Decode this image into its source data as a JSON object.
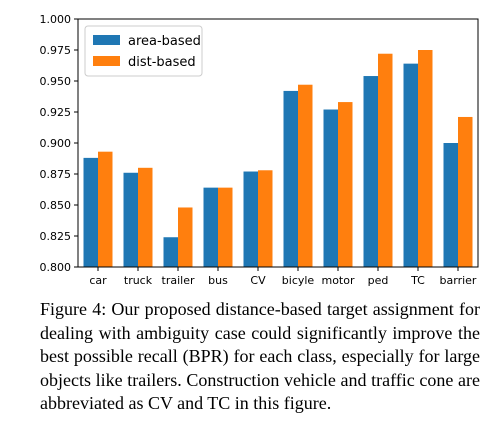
{
  "chart_data": {
    "type": "bar",
    "categories": [
      "car",
      "truck",
      "trailer",
      "bus",
      "CV",
      "bicyle",
      "motor",
      "ped",
      "TC",
      "barrier"
    ],
    "series": [
      {
        "name": "area-based",
        "color": "#1f77b4",
        "values": [
          0.888,
          0.876,
          0.824,
          0.864,
          0.877,
          0.942,
          0.927,
          0.954,
          0.964,
          0.9
        ]
      },
      {
        "name": "dist-based",
        "color": "#ff7f0e",
        "values": [
          0.893,
          0.88,
          0.848,
          0.864,
          0.878,
          0.947,
          0.933,
          0.972,
          0.975,
          0.921
        ]
      }
    ],
    "ylim": [
      0.8,
      1.0
    ],
    "yticks": [
      "0.800",
      "0.825",
      "0.850",
      "0.875",
      "0.900",
      "0.925",
      "0.950",
      "0.975",
      "1.000"
    ],
    "grid": false,
    "legend_position": "top-left"
  },
  "caption": "Figure 4: Our proposed distance-based target assignment for dealing with ambiguity case could significantly improve the best possible recall (BPR) for each class, especially for large objects like trailers. Construction vehicle and traffic cone are abbreviated as CV and TC in this figure."
}
